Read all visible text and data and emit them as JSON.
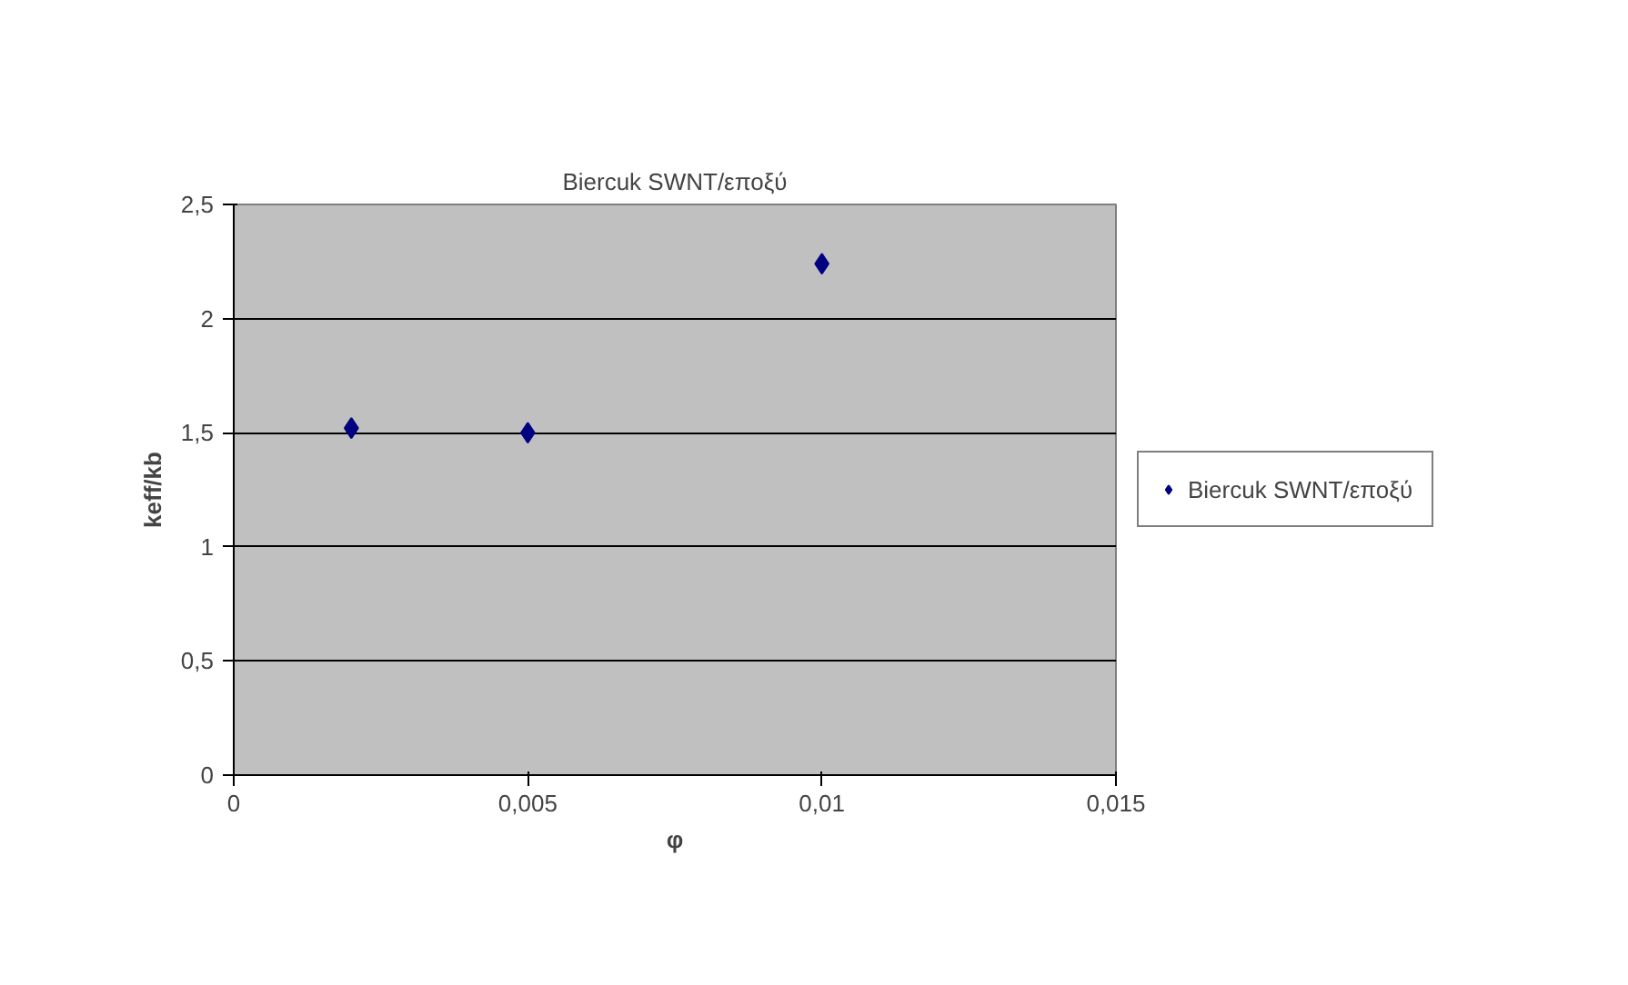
{
  "chart_data": {
    "type": "scatter",
    "title": "Biercuk SWNT/εποξύ",
    "xlabel": "φ",
    "ylabel": "keff/kb",
    "series": [
      {
        "name": "Biercuk SWNT/εποξύ",
        "color": "#000080",
        "x": [
          0.002,
          0.005,
          0.01
        ],
        "values": [
          1.52,
          1.5,
          2.24
        ]
      }
    ],
    "xlim": [
      0,
      0.015
    ],
    "xticks": [
      0,
      {
        "value": 0.005,
        "label": "0,005"
      },
      {
        "value": 0.01,
        "label": "0,01"
      },
      {
        "value": 0.015,
        "label": "0,015"
      }
    ],
    "ylim": [
      0,
      2.5
    ],
    "yticks": [
      0,
      {
        "value": 0.5,
        "label": "0,5"
      },
      1,
      {
        "value": 1.5,
        "label": "1,5"
      },
      2,
      {
        "value": 2.5,
        "label": "2,5"
      }
    ],
    "grid": "y",
    "legend": "right",
    "marker": "diamond"
  }
}
